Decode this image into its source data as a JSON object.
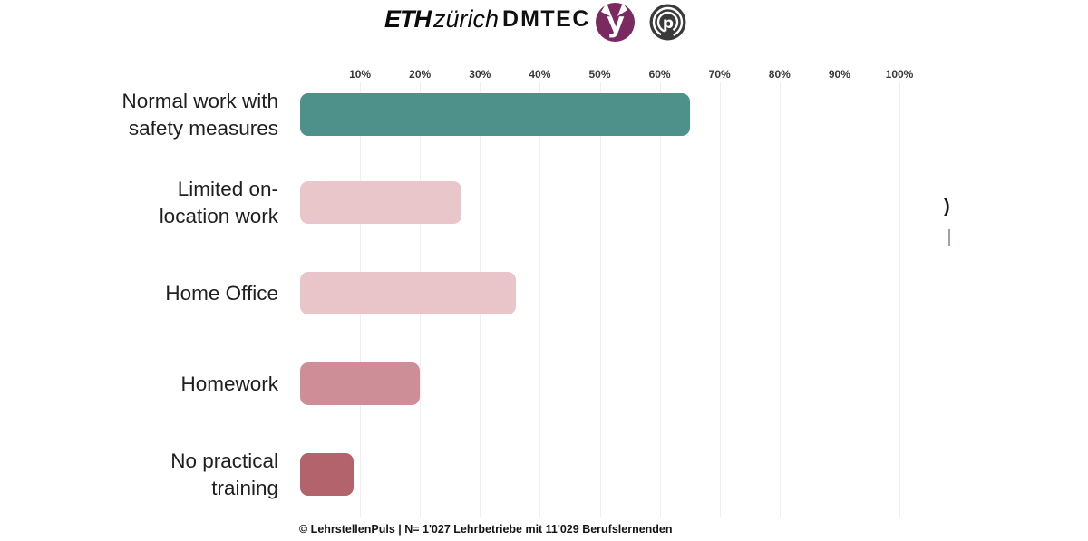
{
  "header": {
    "eth_logo": {
      "eth": "ETH",
      "zurich": "zürich"
    },
    "dmtec_logo": {
      "d": "D",
      "mtec": "MTEC"
    },
    "yousty_logo_color": "#7b2a61",
    "puls_logo_color": "#3a3a3a"
  },
  "chart_data": {
    "type": "bar",
    "orientation": "horizontal",
    "title": "",
    "xlabel": "",
    "ylabel": "",
    "xlim": [
      0,
      100
    ],
    "axis_position": "top",
    "grid": true,
    "x_tick_labels": [
      "10%",
      "20%",
      "30%",
      "40%",
      "50%",
      "60%",
      "70%",
      "80%",
      "90%",
      "100%"
    ],
    "categories": [
      "Normal work with safety measures",
      "Limited on-location work",
      "Home Office",
      "Homework",
      "No practical training"
    ],
    "label_lines": [
      [
        "Normal work with",
        "safety measures"
      ],
      [
        "Limited on-",
        "location work"
      ],
      [
        "Home Office"
      ],
      [
        "Homework"
      ],
      [
        "No practical",
        "training"
      ]
    ],
    "values": [
      65,
      27,
      36,
      20,
      9
    ],
    "unit": "%",
    "bar_colors": [
      "#4e908a",
      "#e9c6ca",
      "#e9c5ca",
      "#cd8e97",
      "#b2636c"
    ],
    "gridline_color": "#f0eeee"
  },
  "annotations": {
    "cropped_paren": ")"
  },
  "footer": {
    "text": "© LehrstellenPuls  |  N= 1'027 Lehrbetriebe mit 11'029 Berufslernenden"
  }
}
